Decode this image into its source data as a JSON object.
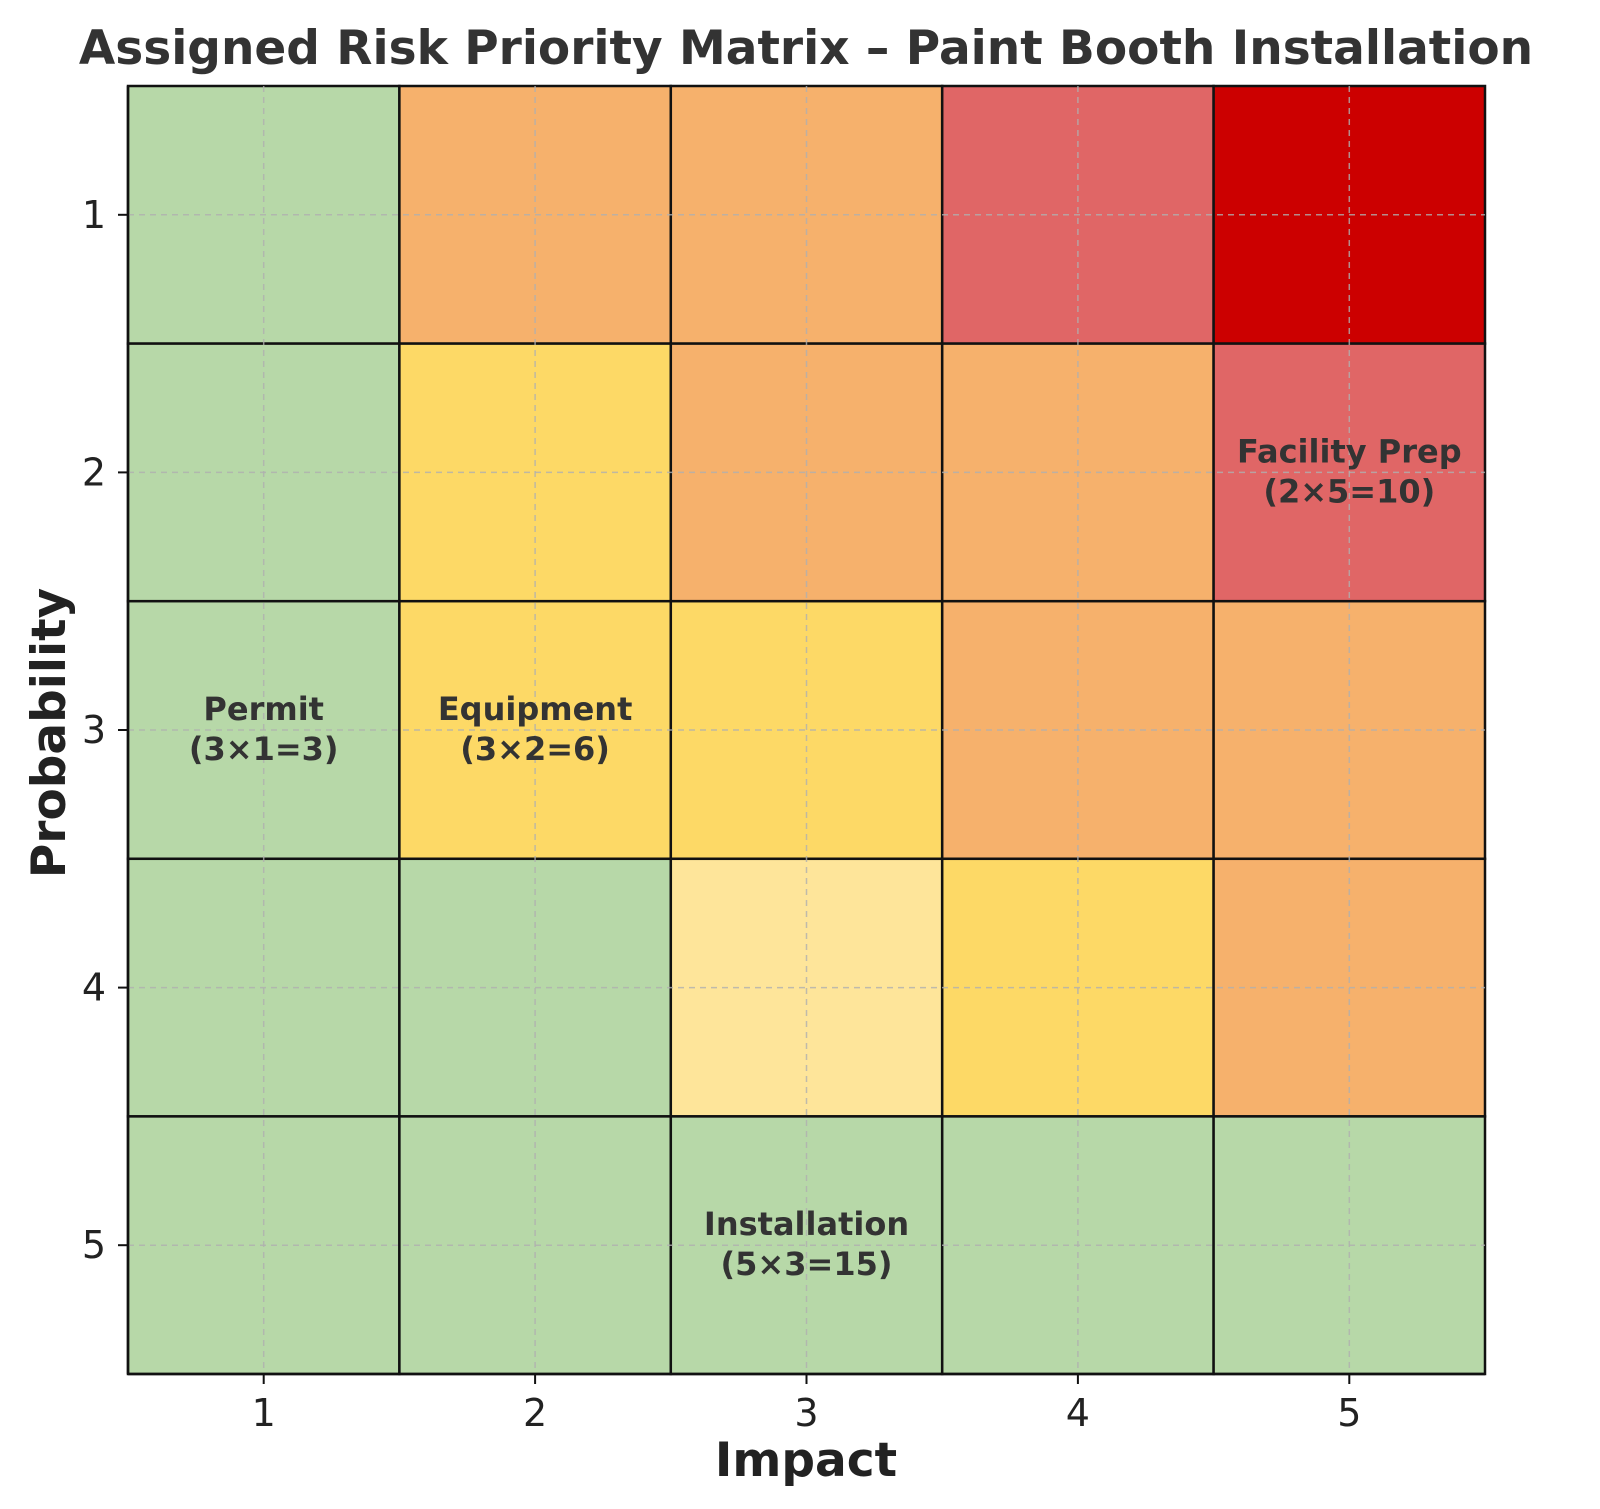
{
  "chart_data": {
    "type": "heatmap",
    "title": "Assigned Risk Priority Matrix – Paint Booth Installation",
    "xlabel": "Impact",
    "ylabel": "Probability",
    "x_categories": [
      "1",
      "2",
      "3",
      "4",
      "5"
    ],
    "y_categories": [
      "1",
      "2",
      "3",
      "4",
      "5"
    ],
    "y_order": "top-to-bottom",
    "grid": true,
    "cell_colors": [
      [
        "#b7d8a8",
        "#f6b16c",
        "#f6b16c",
        "#e06666",
        "#cc0000"
      ],
      [
        "#b7d8a8",
        "#fdd966",
        "#f6b16c",
        "#f6b16c",
        "#e06666"
      ],
      [
        "#b7d8a8",
        "#fdd966",
        "#fdd966",
        "#f6b16c",
        "#f6b16c"
      ],
      [
        "#b7d8a8",
        "#b7d8a8",
        "#fee59a",
        "#fdd966",
        "#f6b16c"
      ],
      [
        "#b7d8a8",
        "#b7d8a8",
        "#b7d8a8",
        "#b7d8a8",
        "#b7d8a8"
      ]
    ],
    "annotations": [
      {
        "name": "Permit",
        "formula": "(3×1=3)",
        "probability": 3,
        "impact": 1,
        "score": 3
      },
      {
        "name": "Equipment",
        "formula": "(3×2=6)",
        "probability": 3,
        "impact": 2,
        "score": 6
      },
      {
        "name": "Facility Prep",
        "formula": "(2×5=10)",
        "probability": 2,
        "impact": 5,
        "score": 10
      },
      {
        "name": "Installation",
        "formula": "(5×3=15)",
        "probability": 5,
        "impact": 3,
        "score": 15
      }
    ]
  }
}
